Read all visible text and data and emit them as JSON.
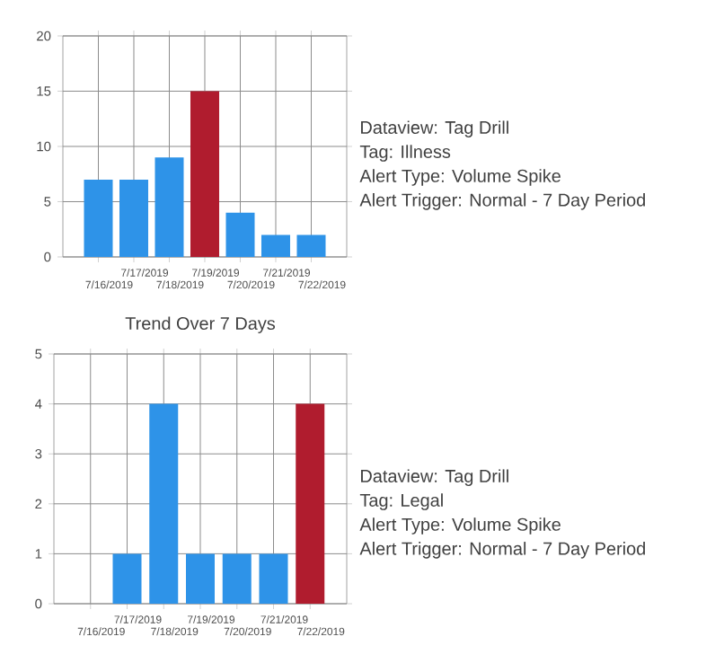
{
  "chart_data": [
    {
      "type": "bar",
      "categories": [
        "7/16/2019",
        "7/17/2019",
        "7/18/2019",
        "7/19/2019",
        "7/20/2019",
        "7/21/2019",
        "7/22/2019"
      ],
      "values": [
        7,
        7,
        9,
        15,
        4,
        2,
        2
      ],
      "colors": [
        "#2e93e8",
        "#2e93e8",
        "#2e93e8",
        "#b01c2e",
        "#2e93e8",
        "#2e93e8",
        "#2e93e8"
      ],
      "ylim": [
        0,
        20
      ],
      "yticks": [
        0,
        5,
        10,
        15,
        20
      ],
      "grid": true
    },
    {
      "type": "other",
      "annotations": [
        "Dataview: Tag Drill",
        "Tag: Illness",
        "Alert Type: Volume Spike",
        "Alert Trigger: Normal - 7 Day Period"
      ]
    },
    {
      "type": "bar",
      "title": "Trend Over 7 Days",
      "categories": [
        "7/16/2019",
        "7/17/2019",
        "7/18/2019",
        "7/19/2019",
        "7/20/2019",
        "7/21/2019",
        "7/22/2019"
      ],
      "values": [
        0,
        1,
        4,
        1,
        1,
        1,
        4
      ],
      "colors": [
        "#2e93e8",
        "#2e93e8",
        "#2e93e8",
        "#2e93e8",
        "#2e93e8",
        "#2e93e8",
        "#b01c2e"
      ],
      "ylim": [
        0,
        5
      ],
      "yticks": [
        0,
        1,
        2,
        3,
        4,
        5
      ],
      "grid": true
    },
    {
      "type": "other",
      "annotations": [
        "Dataview: Tag Drill",
        "Tag: Legal",
        "Alert Type: Volume Spike",
        "Alert Trigger: Normal - 7 Day Period"
      ]
    }
  ]
}
